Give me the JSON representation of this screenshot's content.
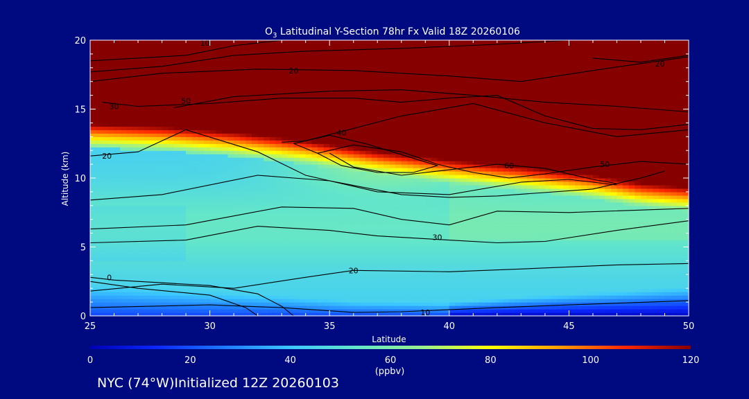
{
  "chart_data": {
    "type": "heatmap",
    "title_main": "O",
    "title_sub": "3",
    "title_rest": " Latitudinal Y-Section 78hr  Fx Valid 18Z 20260106",
    "xlabel": "Latitude",
    "ylabel": "Altitude (km)",
    "xlim": [
      25,
      50
    ],
    "ylim": [
      0,
      20
    ],
    "x_ticks": [
      "25",
      "30",
      "35",
      "40",
      "45",
      "50"
    ],
    "y_ticks": [
      "0",
      "5",
      "10",
      "15",
      "20"
    ],
    "colorbar": {
      "range": [
        0,
        120
      ],
      "ticks": [
        "0",
        "20",
        "40",
        "60",
        "80",
        "100",
        "120"
      ],
      "unit": "(ppbv)",
      "colors": [
        "#0000b4",
        "#0a28ff",
        "#1e78ff",
        "#3cc8ff",
        "#64e6c8",
        "#9bf08c",
        "#ffff00",
        "#ffa000",
        "#ff2800",
        "#870000"
      ]
    },
    "contours": [
      {
        "level": "10",
        "points": [
          [
            25,
            0.6
          ],
          [
            30,
            0.8
          ],
          [
            33,
            0.6
          ],
          [
            36,
            0.25
          ],
          [
            38,
            0.3
          ],
          [
            42,
            0.6
          ],
          [
            45,
            0.8
          ],
          [
            50,
            1.1
          ]
        ],
        "label_at": [
          39,
          0.25
        ]
      },
      {
        "level": "20",
        "points": [
          [
            25,
            1.8
          ],
          [
            28,
            2.3
          ],
          [
            31,
            2.0
          ],
          [
            34,
            2.8
          ],
          [
            36,
            3.3
          ],
          [
            40,
            3.2
          ],
          [
            43,
            3.4
          ],
          [
            47,
            3.7
          ],
          [
            50,
            3.8
          ]
        ],
        "label_at": [
          36,
          3.3
        ]
      },
      {
        "level": "30",
        "points": [
          [
            25,
            5.3
          ],
          [
            29,
            5.5
          ],
          [
            32,
            6.5
          ],
          [
            35,
            6.2
          ],
          [
            37,
            5.8
          ],
          [
            40,
            5.5
          ],
          [
            42,
            5.3
          ],
          [
            44,
            5.4
          ],
          [
            47,
            6.2
          ],
          [
            50,
            6.9
          ]
        ],
        "label_at": [
          39.5,
          5.7
        ]
      },
      {
        "level": "",
        "points": [
          [
            25,
            6.3
          ],
          [
            29,
            6.6
          ],
          [
            33,
            7.9
          ],
          [
            36,
            7.8
          ],
          [
            38,
            7.0
          ],
          [
            40,
            6.6
          ],
          [
            42,
            7.6
          ],
          [
            45,
            7.5
          ],
          [
            50,
            7.8
          ]
        ],
        "label_at": null
      },
      {
        "level": "",
        "points": [
          [
            25,
            8.4
          ],
          [
            28,
            8.8
          ],
          [
            32,
            10.2
          ],
          [
            35,
            9.8
          ],
          [
            38,
            8.8
          ],
          [
            40,
            8.6
          ],
          [
            42,
            8.7
          ],
          [
            46,
            9.2
          ],
          [
            48,
            10.0
          ],
          [
            49,
            10.5
          ]
        ],
        "label_at": null
      },
      {
        "level": "20",
        "points": [
          [
            25,
            11.6
          ],
          [
            27,
            11.9
          ],
          [
            28,
            12.7
          ],
          [
            29,
            13.5
          ],
          [
            32,
            11.9
          ],
          [
            34,
            10.2
          ],
          [
            37,
            9.0
          ],
          [
            40,
            8.8
          ],
          [
            43,
            9.7
          ],
          [
            45,
            9.9
          ],
          [
            47,
            9.5
          ]
        ],
        "label_at": [
          25.7,
          11.6
        ]
      },
      {
        "level": "",
        "points": [
          [
            35,
            11.8
          ],
          [
            36,
            10.8
          ],
          [
            38,
            10.2
          ],
          [
            40,
            10.6
          ],
          [
            42,
            11.0
          ],
          [
            44,
            10.7
          ],
          [
            46,
            9.9
          ],
          [
            47,
            9.6
          ]
        ],
        "label_at": null
      },
      {
        "level": "60",
        "points": [
          [
            34.5,
            11.8
          ],
          [
            36,
            12.4
          ],
          [
            38,
            11.9
          ],
          [
            39.5,
            11.0
          ],
          [
            41,
            10.4
          ],
          [
            42.5,
            10.0
          ],
          [
            44,
            10.3
          ],
          [
            46,
            10.8
          ],
          [
            48,
            11.2
          ],
          [
            50,
            11.0
          ]
        ],
        "label_at": [
          42.5,
          10.9
        ]
      },
      {
        "level": "40",
        "points": [
          [
            33.5,
            12.5
          ],
          [
            35,
            13.1
          ],
          [
            36.5,
            12.5
          ],
          [
            38,
            11.7
          ],
          [
            39.5,
            10.9
          ],
          [
            38.5,
            10.4
          ],
          [
            37,
            10.4
          ],
          [
            35.5,
            10.9
          ],
          [
            34.5,
            11.8
          ],
          [
            33.5,
            12.5
          ]
        ],
        "label_at": [
          35.5,
          13.3
        ]
      },
      {
        "level": "50",
        "points": [
          [
            33,
            12.6
          ],
          [
            34,
            12.7
          ],
          [
            38,
            14.5
          ],
          [
            41,
            15.4
          ],
          [
            44,
            14.0
          ],
          [
            47,
            13.0
          ],
          [
            50,
            13.5
          ]
        ],
        "label_at": [
          46.5,
          11.0
        ]
      },
      {
        "level": "30",
        "points": [
          [
            25.5,
            15.5
          ],
          [
            27,
            15.2
          ],
          [
            30,
            15.4
          ],
          [
            33,
            15.8
          ],
          [
            36,
            15.8
          ],
          [
            38,
            15.5
          ],
          [
            40,
            15.8
          ],
          [
            42,
            16.0
          ],
          [
            44,
            14.5
          ],
          [
            46,
            13.6
          ],
          [
            48,
            13.5
          ],
          [
            50,
            13.9
          ]
        ],
        "label_at": [
          26,
          15.2
        ]
      },
      {
        "level": "50",
        "points": [
          [
            28.5,
            15.1
          ],
          [
            31,
            15.9
          ],
          [
            35,
            16.3
          ],
          [
            38,
            16.4
          ],
          [
            41,
            16.0
          ],
          [
            44,
            15.5
          ],
          [
            47,
            15.2
          ],
          [
            50,
            14.8
          ]
        ],
        "label_at": [
          29,
          15.6
        ]
      },
      {
        "level": "20",
        "points": [
          [
            25,
            17.0
          ],
          [
            28,
            17.6
          ],
          [
            32,
            17.9
          ],
          [
            36,
            17.8
          ],
          [
            40,
            17.4
          ],
          [
            43,
            17.0
          ],
          [
            46,
            17.8
          ],
          [
            48,
            18.3
          ],
          [
            50,
            18.8
          ]
        ],
        "label_at": [
          33.5,
          17.8
        ]
      },
      {
        "level": "",
        "points": [
          [
            25,
            17.7
          ],
          [
            28,
            18.1
          ],
          [
            31,
            18.9
          ],
          [
            34,
            19.2
          ],
          [
            38,
            19.4
          ],
          [
            42,
            19.7
          ],
          [
            45,
            20.0
          ]
        ],
        "label_at": null
      },
      {
        "level": "10",
        "points": [
          [
            25,
            18.5
          ],
          [
            29,
            18.9
          ],
          [
            31,
            19.6
          ],
          [
            33,
            20.0
          ]
        ],
        "label_at": [
          29.8,
          19.8
        ]
      },
      {
        "level": "20",
        "points": [
          [
            46,
            18.7
          ],
          [
            48,
            18.4
          ],
          [
            50,
            18.9
          ]
        ],
        "label_at": [
          48.8,
          18.3
        ]
      },
      {
        "level": "0",
        "points": [
          [
            25,
            2.8
          ],
          [
            26,
            2.6
          ],
          [
            28,
            2.4
          ],
          [
            30,
            2.2
          ],
          [
            32,
            1.6
          ],
          [
            33,
            0.7
          ],
          [
            33.5,
            0
          ]
        ],
        "label_at": [
          25.8,
          2.8
        ]
      },
      {
        "level": "",
        "points": [
          [
            25,
            2.5
          ],
          [
            27,
            2.0
          ],
          [
            30,
            1.5
          ],
          [
            31.5,
            0.6
          ],
          [
            32,
            0
          ]
        ],
        "label_at": null
      }
    ]
  },
  "footer": "NYC (74°W)Initialized 12Z 20260103"
}
